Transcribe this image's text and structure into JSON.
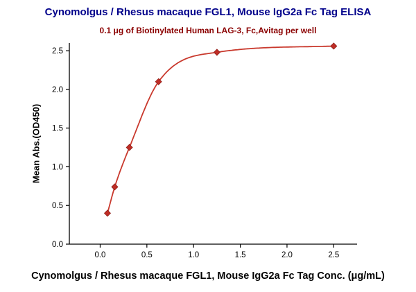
{
  "chart_data": {
    "type": "scatter",
    "title": "Cynomolgus / Rhesus macaque FGL1, Mouse IgG2a Fc Tag ELISA",
    "subtitle": "0.1 μg of Biotinylated Human LAG-3, Fc,Avitag per well",
    "xlabel": "Cynomolgus / Rhesus macaque FGL1, Mouse IgG2a Fc Tag Conc. (μg/mL)",
    "ylabel": "Mean Abs.(OD450)",
    "x": [
      0.078,
      0.156,
      0.313,
      0.625,
      1.25,
      2.5
    ],
    "y": [
      0.4,
      0.74,
      1.25,
      2.1,
      2.48,
      2.56
    ],
    "xticks": [
      0.0,
      0.5,
      1.0,
      1.5,
      2.0,
      2.5
    ],
    "yticks": [
      0.0,
      0.5,
      1.0,
      1.5,
      2.0,
      2.5
    ],
    "xlim": [
      -0.33,
      2.75
    ],
    "ylim": [
      0,
      2.6
    ],
    "curve": "smooth-fit",
    "marker": "diamond",
    "grid": false,
    "legend": null,
    "colors": {
      "line": "#c9392d",
      "marker": "#bf2d26",
      "marker_edge": "#8f1f18",
      "title": "#00008b",
      "subtitle": "#8b0000",
      "axis": "#000000"
    }
  }
}
